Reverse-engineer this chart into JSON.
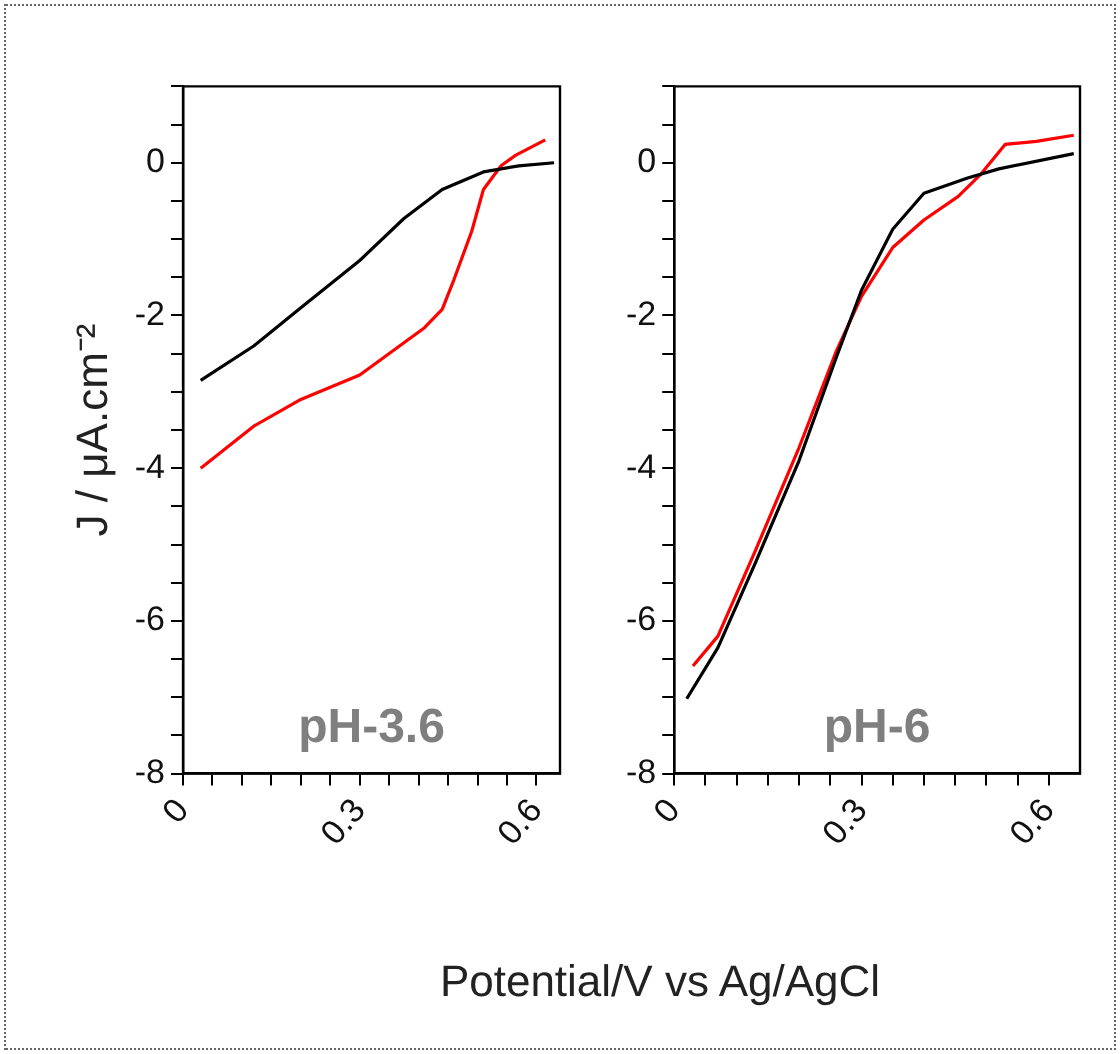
{
  "chart_data": [
    {
      "type": "line",
      "ylabel": "J / μA.cm⁻²",
      "xlabel": "Potential/V vs Ag/AgCl",
      "annotations": [
        "pH-3.6"
      ],
      "xlim": [
        0,
        0.64
      ],
      "ylim": [
        -8,
        1
      ],
      "xticks": [
        0,
        {
          "value": 0.05,
          "label": null
        },
        {
          "value": 0.1,
          "label": null
        },
        {
          "value": 0.15,
          "label": null
        },
        {
          "value": 0.2,
          "label": null
        },
        {
          "value": 0.25,
          "label": null
        },
        0.3,
        {
          "value": 0.35,
          "label": null
        },
        {
          "value": 0.4,
          "label": null
        },
        {
          "value": 0.45,
          "label": null
        },
        {
          "value": 0.5,
          "label": null
        },
        {
          "value": 0.55,
          "label": null
        },
        0.6
      ],
      "yticks": [
        -8,
        {
          "value": -7.5,
          "label": null
        },
        {
          "value": -7,
          "label": null
        },
        {
          "value": -6.5,
          "label": null
        },
        -6,
        {
          "value": -5.5,
          "label": null
        },
        {
          "value": -5,
          "label": null
        },
        {
          "value": -4.5,
          "label": null
        },
        -4,
        {
          "value": -3.5,
          "label": null
        },
        {
          "value": -3,
          "label": null
        },
        {
          "value": -2.5,
          "label": null
        },
        -2,
        {
          "value": -1.5,
          "label": null
        },
        {
          "value": -1,
          "label": null
        },
        {
          "value": -0.5,
          "label": null
        },
        0,
        {
          "value": 0.5,
          "label": null
        },
        {
          "value": 1,
          "label": null
        }
      ],
      "grid": false,
      "legend": false,
      "marker": "none",
      "line_style": "solid",
      "series": [
        {
          "color": "#000000",
          "x": [
            0.03,
            0.12,
            0.2,
            0.3,
            0.375,
            0.44,
            0.51,
            0.57,
            0.63
          ],
          "values": [
            -2.85,
            -2.4,
            -1.9,
            -1.28,
            -0.73,
            -0.35,
            -0.12,
            -0.04,
            0.0
          ]
        },
        {
          "color": "#ff0000",
          "x": [
            0.03,
            0.12,
            0.2,
            0.3,
            0.41,
            0.44,
            0.46,
            0.49,
            0.51,
            0.54,
            0.565,
            0.615
          ],
          "values": [
            -4.0,
            -3.45,
            -3.1,
            -2.78,
            -2.16,
            -1.92,
            -1.53,
            -0.9,
            -0.35,
            -0.04,
            0.1,
            0.3
          ]
        }
      ]
    },
    {
      "type": "line",
      "annotations": [
        "pH-6"
      ],
      "xlim": [
        0,
        0.65
      ],
      "ylim": [
        -8,
        1
      ],
      "xticks": [
        0,
        {
          "value": 0.05,
          "label": null
        },
        {
          "value": 0.1,
          "label": null
        },
        {
          "value": 0.15,
          "label": null
        },
        {
          "value": 0.2,
          "label": null
        },
        {
          "value": 0.25,
          "label": null
        },
        0.3,
        {
          "value": 0.35,
          "label": null
        },
        {
          "value": 0.4,
          "label": null
        },
        {
          "value": 0.45,
          "label": null
        },
        {
          "value": 0.5,
          "label": null
        },
        {
          "value": 0.55,
          "label": null
        },
        0.6
      ],
      "yticks": [
        -8,
        {
          "value": -7.5,
          "label": null
        },
        {
          "value": -7,
          "label": null
        },
        {
          "value": -6.5,
          "label": null
        },
        -6,
        {
          "value": -5.5,
          "label": null
        },
        {
          "value": -5,
          "label": null
        },
        {
          "value": -4.5,
          "label": null
        },
        -4,
        {
          "value": -3.5,
          "label": null
        },
        {
          "value": -3,
          "label": null
        },
        {
          "value": -2.5,
          "label": null
        },
        -2,
        {
          "value": -1.5,
          "label": null
        },
        {
          "value": -1,
          "label": null
        },
        {
          "value": -0.5,
          "label": null
        },
        0,
        {
          "value": 0.5,
          "label": null
        },
        {
          "value": 1,
          "label": null
        }
      ],
      "grid": false,
      "legend": false,
      "marker": "none",
      "line_style": "solid",
      "series": [
        {
          "color": "#000000",
          "x": [
            0.02,
            0.07,
            0.13,
            0.2,
            0.26,
            0.3,
            0.35,
            0.4,
            0.47,
            0.52,
            0.64
          ],
          "values": [
            -7.02,
            -6.35,
            -5.24,
            -3.9,
            -2.54,
            -1.67,
            -0.87,
            -0.4,
            -0.2,
            -0.08,
            0.12
          ]
        },
        {
          "color": "#ff0000",
          "x": [
            0.03,
            0.07,
            0.13,
            0.2,
            0.26,
            0.3,
            0.35,
            0.4,
            0.455,
            0.49,
            0.53,
            0.58,
            0.64
          ],
          "values": [
            -6.59,
            -6.2,
            -5.08,
            -3.73,
            -2.46,
            -1.75,
            -1.11,
            -0.75,
            -0.44,
            -0.16,
            0.24,
            0.28,
            0.36
          ]
        }
      ]
    }
  ]
}
